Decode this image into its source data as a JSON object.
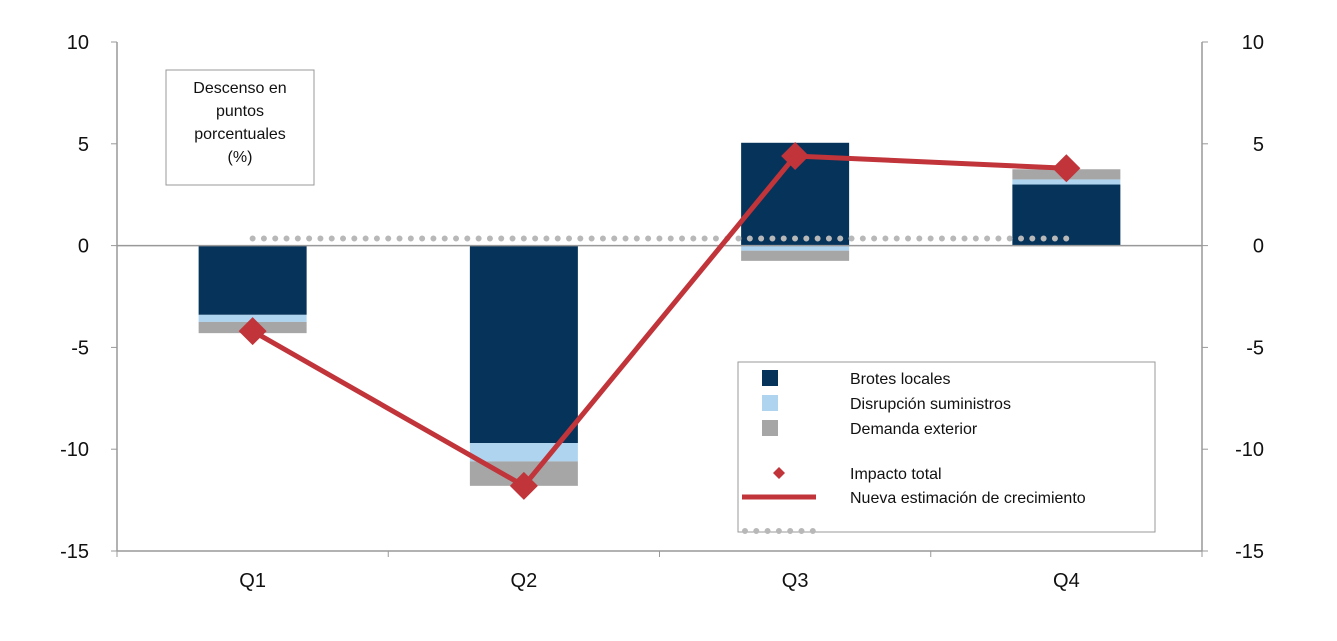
{
  "chart_data": {
    "type": "bar",
    "stacked": true,
    "categories": [
      "Q1",
      "Q2",
      "Q3",
      "Q4"
    ],
    "ylim": [
      -15,
      10
    ],
    "yticks": [
      10,
      5,
      0,
      -5,
      -10,
      -15
    ],
    "secondary_ylim": [
      -15,
      10
    ],
    "annotation": [
      "Descenso en",
      "puntos",
      "porcentuales",
      "(%)"
    ],
    "legend_position": "bottom-right",
    "series": [
      {
        "name": "Brotes locales",
        "kind": "bar",
        "color": "#06335a",
        "values": [
          -3.4,
          -9.7,
          5.05,
          3.0
        ]
      },
      {
        "name": "Disrupción suministros",
        "kind": "bar",
        "color": "#aed4f0",
        "values": [
          -0.35,
          -0.9,
          -0.25,
          0.25
        ]
      },
      {
        "name": "Demanda exterior",
        "kind": "bar",
        "color": "#a6a6a6",
        "values": [
          -0.55,
          -1.2,
          -0.5,
          0.5
        ]
      },
      {
        "name": "Impacto total",
        "kind": "marker",
        "color": "#c0343a",
        "values": [
          -4.2,
          -11.8,
          4.4,
          3.8
        ]
      },
      {
        "name": "Nueva estimación de crecimiento",
        "kind": "line",
        "color": "#c0343a",
        "values": [
          -4.2,
          -11.8,
          4.4,
          3.8
        ]
      },
      {
        "name": "",
        "kind": "dotted",
        "color": "#b8b8b8",
        "values": [
          0.35,
          0.35,
          0.35,
          0.35
        ]
      }
    ]
  }
}
